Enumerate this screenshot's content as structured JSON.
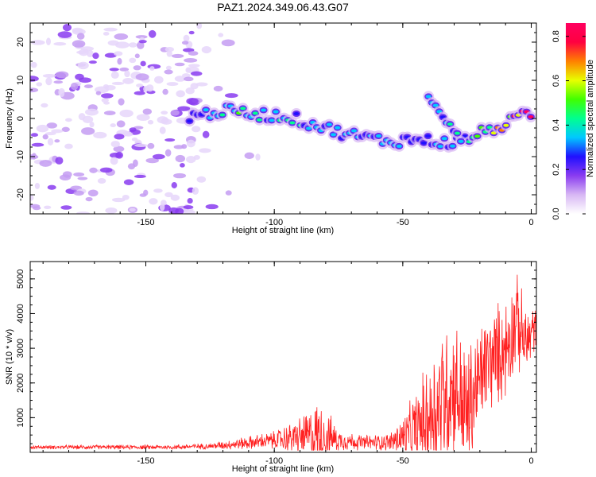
{
  "figure": {
    "title": "PAZ1.2024.349.06.43.G07"
  },
  "chart_data": [
    {
      "type": "heatmap",
      "xlabel": "Height of straight line (km)",
      "ylabel": "Frequency (Hz)",
      "xlim": [
        -195,
        2
      ],
      "ylim": [
        -25,
        25
      ],
      "xticks": [
        -150,
        -100,
        -50,
        0
      ],
      "yticks": [
        -20,
        -10,
        0,
        10,
        20
      ],
      "colorbar": {
        "label": "Normalized spectral amplitude",
        "range": [
          0,
          0.86
        ],
        "ticks": [
          0.0,
          0.2,
          0.4,
          0.6,
          0.8
        ],
        "colormap": [
          "#ffffff",
          "#d8b8f4",
          "#8a3cf0",
          "#2010ff",
          "#00c8ff",
          "#00ff90",
          "#40ff00",
          "#e8ff00",
          "#ff8000",
          "#ff0040",
          "#ff0060"
        ]
      },
      "noise_region": {
        "x": [
          -195,
          -130
        ],
        "y": [
          -25,
          25
        ],
        "level": 0.15
      },
      "signal_track": {
        "points": [
          {
            "x": -133,
            "y": 0.5,
            "a": 0.3
          },
          {
            "x": -120,
            "y": 2,
            "a": 0.42
          },
          {
            "x": -105,
            "y": 1,
            "a": 0.38
          },
          {
            "x": -95,
            "y": 0.5,
            "a": 0.36
          },
          {
            "x": -85,
            "y": -1.5,
            "a": 0.34
          },
          {
            "x": -75,
            "y": -3.5,
            "a": 0.3
          },
          {
            "x": -65,
            "y": -5,
            "a": 0.3
          },
          {
            "x": -55,
            "y": -6,
            "a": 0.32
          },
          {
            "x": -45,
            "y": -5.5,
            "a": 0.3
          },
          {
            "x": -30,
            "y": -6.5,
            "a": 0.38
          },
          {
            "x": -20,
            "y": -4,
            "a": 0.45
          },
          {
            "x": -12,
            "y": -2,
            "a": 0.6
          },
          {
            "x": -5,
            "y": 0,
            "a": 0.8
          },
          {
            "x": 0,
            "y": 1.5,
            "a": 0.86
          }
        ],
        "branch": [
          {
            "x": -40,
            "y": 5,
            "a": 0.3
          },
          {
            "x": -33,
            "y": 0,
            "a": 0.35
          },
          {
            "x": -27,
            "y": -5,
            "a": 0.4
          }
        ]
      }
    },
    {
      "type": "line",
      "xlabel": "Height of straight line (km)",
      "ylabel": "SNR (10 * v/v)",
      "xlim": [
        -195,
        2
      ],
      "ylim": [
        0,
        5500
      ],
      "xticks": [
        -150,
        -100,
        -50,
        0
      ],
      "yticks": [
        1000,
        2000,
        3000,
        4000,
        5000
      ],
      "series": [
        {
          "color": "#ff2020",
          "envelope": [
            {
              "x": -195,
              "base": 150,
              "amp": 60
            },
            {
              "x": -140,
              "base": 150,
              "amp": 80
            },
            {
              "x": -125,
              "base": 180,
              "amp": 100
            },
            {
              "x": -115,
              "base": 240,
              "amp": 180
            },
            {
              "x": -100,
              "base": 350,
              "amp": 300
            },
            {
              "x": -90,
              "base": 450,
              "amp": 650
            },
            {
              "x": -82,
              "base": 500,
              "amp": 1200
            },
            {
              "x": -75,
              "base": 350,
              "amp": 350
            },
            {
              "x": -65,
              "base": 280,
              "amp": 250
            },
            {
              "x": -55,
              "base": 300,
              "amp": 300
            },
            {
              "x": -48,
              "base": 500,
              "amp": 900
            },
            {
              "x": -42,
              "base": 800,
              "amp": 1700
            },
            {
              "x": -35,
              "base": 1500,
              "amp": 2600
            },
            {
              "x": -30,
              "base": 1900,
              "amp": 2300
            },
            {
              "x": -25,
              "base": 1100,
              "amp": 2300
            },
            {
              "x": -18,
              "base": 2500,
              "amp": 1700
            },
            {
              "x": -10,
              "base": 3000,
              "amp": 1700
            },
            {
              "x": -6,
              "base": 3800,
              "amp": 1600
            },
            {
              "x": -2,
              "base": 3100,
              "amp": 1300
            },
            {
              "x": 2,
              "base": 3700,
              "amp": 700
            }
          ]
        }
      ]
    }
  ]
}
